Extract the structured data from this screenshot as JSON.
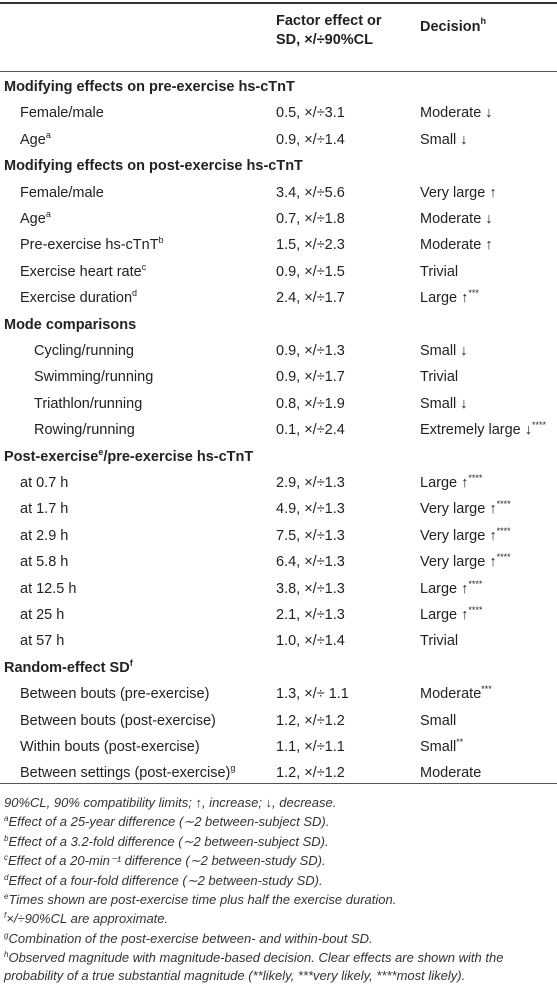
{
  "table": {
    "col_factor_line1": "Factor effect or",
    "col_factor_line2": "SD, ×/÷90%CL",
    "col_decision": "Decision",
    "col_decision_sup": "h",
    "rows": [
      {
        "type": "sect",
        "label": "Modifying effects on pre-exercise hs-cTnT",
        "sup": "",
        "factor": "",
        "decision": "",
        "dsup": ""
      },
      {
        "type": "item",
        "label": "Female/male",
        "sup": "",
        "factor": "0.5, ×/÷3.1",
        "decision": "Moderate ↓",
        "dsup": ""
      },
      {
        "type": "item",
        "label": "Age",
        "sup": "a",
        "factor": "0.9, ×/÷1.4",
        "decision": "Small ↓",
        "dsup": ""
      },
      {
        "type": "sect",
        "label": "Modifying effects on post-exercise hs-cTnT",
        "sup": "",
        "factor": "",
        "decision": "",
        "dsup": ""
      },
      {
        "type": "item",
        "label": "Female/male",
        "sup": "",
        "factor": "3.4, ×/÷5.6",
        "decision": "Very large ↑",
        "dsup": ""
      },
      {
        "type": "item",
        "label": "Age",
        "sup": "a",
        "factor": "0.7, ×/÷1.8",
        "decision": "Moderate ↓",
        "dsup": ""
      },
      {
        "type": "item",
        "label": "Pre-exercise hs-cTnT",
        "sup": "b",
        "factor": "1.5, ×/÷2.3",
        "decision": "Moderate ↑",
        "dsup": ""
      },
      {
        "type": "item",
        "label": "Exercise heart rate",
        "sup": "c",
        "factor": "0.9, ×/÷1.5",
        "decision": "Trivial",
        "dsup": ""
      },
      {
        "type": "item",
        "label": "Exercise duration",
        "sup": "d",
        "factor": "2.4, ×/÷1.7",
        "decision": "Large ↑",
        "dsup": "***"
      },
      {
        "type": "sect",
        "label": "Mode comparisons",
        "sup": "",
        "factor": "",
        "decision": "",
        "dsup": ""
      },
      {
        "type": "mode",
        "label": "Cycling/running",
        "sup": "",
        "factor": "0.9, ×/÷1.3",
        "decision": "Small ↓",
        "dsup": ""
      },
      {
        "type": "mode",
        "label": "Swimming/running",
        "sup": "",
        "factor": "0.9, ×/÷1.7",
        "decision": "Trivial",
        "dsup": ""
      },
      {
        "type": "mode",
        "label": "Triathlon/running",
        "sup": "",
        "factor": "0.8, ×/÷1.9",
        "decision": "Small ↓",
        "dsup": ""
      },
      {
        "type": "mode",
        "label": "Rowing/running",
        "sup": "",
        "factor": "0.1, ×/÷2.4",
        "decision": "Extremely large ↓",
        "dsup": "****"
      },
      {
        "type": "sect",
        "label": "Post-exercise",
        "sup": "e",
        "label2": "/pre-exercise hs-cTnT",
        "factor": "",
        "decision": "",
        "dsup": ""
      },
      {
        "type": "item",
        "label": "at 0.7 h",
        "sup": "",
        "factor": "2.9, ×/÷1.3",
        "decision": "Large ↑",
        "dsup": "****"
      },
      {
        "type": "item",
        "label": "at 1.7 h",
        "sup": "",
        "factor": "4.9, ×/÷1.3",
        "decision": "Very large ↑",
        "dsup": "****"
      },
      {
        "type": "item",
        "label": "at 2.9 h",
        "sup": "",
        "factor": "7.5, ×/÷1.3",
        "decision": "Very large ↑",
        "dsup": "****"
      },
      {
        "type": "item",
        "label": "at 5.8 h",
        "sup": "",
        "factor": "6.4, ×/÷1.3",
        "decision": "Very large ↑",
        "dsup": "****"
      },
      {
        "type": "item",
        "label": "at 12.5 h",
        "sup": "",
        "factor": "3.8, ×/÷1.3",
        "decision": "Large ↑",
        "dsup": "****"
      },
      {
        "type": "item",
        "label": "at 25 h",
        "sup": "",
        "factor": "2.1, ×/÷1.3",
        "decision": "Large ↑",
        "dsup": "****"
      },
      {
        "type": "item",
        "label": "at 57 h",
        "sup": "",
        "factor": "1.0, ×/÷1.4",
        "decision": "Trivial",
        "dsup": ""
      },
      {
        "type": "sect",
        "label": "Random-effect SD",
        "sup": "f",
        "factor": "",
        "decision": "",
        "dsup": ""
      },
      {
        "type": "item",
        "label": "Between bouts (pre-exercise)",
        "sup": "",
        "factor": "1.3, ×/÷ 1.1",
        "decision": "Moderate",
        "dsup": "***"
      },
      {
        "type": "item",
        "label": "Between bouts (post-exercise)",
        "sup": "",
        "factor": "1.2, ×/÷1.2",
        "decision": "Small",
        "dsup": ""
      },
      {
        "type": "item",
        "label": "Within bouts (post-exercise)",
        "sup": "",
        "factor": "1.1, ×/÷1.1",
        "decision": "Small",
        "dsup": "**"
      },
      {
        "type": "item",
        "label": "Between settings (post-exercise)",
        "sup": "g",
        "factor": "1.2, ×/÷1.2",
        "decision": "Moderate",
        "dsup": ""
      }
    ]
  },
  "footnotes": [
    {
      "mark": "",
      "text": "90%CL, 90% compatibility limits; ↑, increase; ↓, decrease."
    },
    {
      "mark": "a",
      "text": "Effect of a 25-year difference (∼2 between-subject SD)."
    },
    {
      "mark": "b",
      "text": "Effect of a 3.2-fold difference (∼2 between-subject SD)."
    },
    {
      "mark": "c",
      "text": "Effect of a 20-min⁻¹ difference (∼2 between-study SD)."
    },
    {
      "mark": "d",
      "text": "Effect of a four-fold difference (∼2 between-study SD)."
    },
    {
      "mark": "e",
      "text": "Times shown are post-exercise time plus half the exercise duration."
    },
    {
      "mark": "f",
      "text": "×/÷90%CL are approximate."
    },
    {
      "mark": "g",
      "text": "Combination of the post-exercise between- and within-bout SD."
    },
    {
      "mark": "h",
      "text": "Observed magnitude with magnitude-based decision. Clear effects are shown with the probability of a true substantial magnitude (**likely, ***very likely, ****most likely)."
    }
  ]
}
